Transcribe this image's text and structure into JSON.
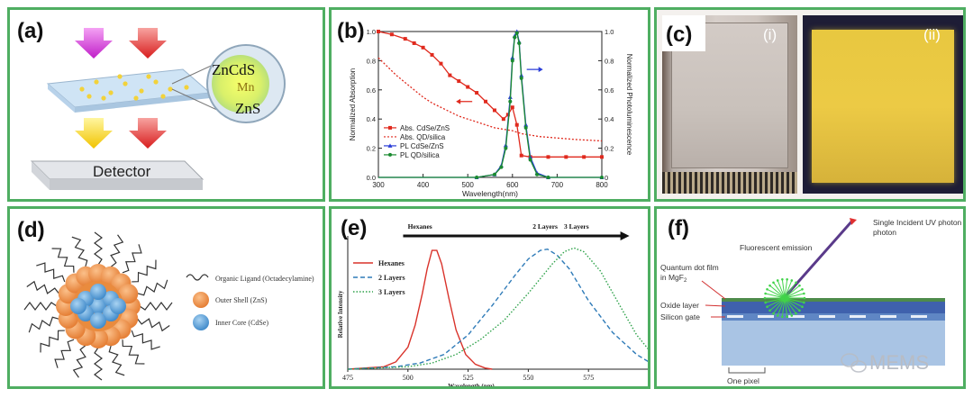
{
  "panels": {
    "a": {
      "label": "(a)",
      "dot_label": "ZnCdS",
      "mn_label": "Mn",
      "shell_label": "ZnS",
      "detector_label": "Detector"
    },
    "b": {
      "label": "(b)"
    },
    "c": {
      "label": "(c)",
      "sub_i": "(i)",
      "sub_ii": "(ii)"
    },
    "d": {
      "label": "(d)",
      "legend": [
        "Organic Ligand (Octadecylamine)",
        "Outer Shell (ZnS)",
        "Inner Core (CdSe)"
      ]
    },
    "e": {
      "label": "(e)",
      "arrow_labels": [
        "Hexanes",
        "2 Layers",
        "3 Layers"
      ]
    },
    "f": {
      "label": "(f)",
      "annotations": [
        "Single Incident UV photon",
        "Fluorescent emission",
        "Quantum dot film in MgF2",
        "Oxide layer",
        "Silicon gate",
        "One pixel"
      ]
    }
  },
  "watermark": "MEMS",
  "chart_data": [
    {
      "panel": "b",
      "type": "line",
      "xlabel": "Wavelength(nm)",
      "ylabel": "Normalized Absorption",
      "y2label": "Normalized Photoluminescence",
      "xlim": [
        300,
        800
      ],
      "ylim": [
        0,
        1.0
      ],
      "y2lim": [
        0,
        1.0
      ],
      "xticks": [
        300,
        400,
        500,
        600,
        700,
        800
      ],
      "yticks": [
        0.0,
        0.2,
        0.4,
        0.6,
        0.8,
        1.0
      ],
      "y2ticks": [
        0,
        0.2,
        0.4,
        0.6,
        0.8,
        1.0
      ],
      "legend_position": "lower-left",
      "series": [
        {
          "name": "Abs. CdSe/ZnS",
          "color": "#e02a1e",
          "style": "solid-square",
          "x": [
            300,
            330,
            360,
            380,
            400,
            420,
            440,
            460,
            480,
            500,
            520,
            540,
            560,
            580,
            590,
            600,
            610,
            620,
            640,
            680,
            720,
            760,
            800
          ],
          "y": [
            1.0,
            0.98,
            0.95,
            0.92,
            0.89,
            0.84,
            0.78,
            0.7,
            0.66,
            0.62,
            0.58,
            0.52,
            0.46,
            0.4,
            0.43,
            0.48,
            0.36,
            0.15,
            0.14,
            0.14,
            0.14,
            0.14,
            0.14
          ]
        },
        {
          "name": "Abs. QD/silica",
          "color": "#e02a1e",
          "style": "dotted",
          "x": [
            300,
            320,
            340,
            360,
            380,
            400,
            420,
            440,
            460,
            480,
            500,
            520,
            540,
            560,
            580,
            600,
            620,
            640,
            660,
            700,
            740,
            800
          ],
          "y": [
            0.82,
            0.76,
            0.7,
            0.65,
            0.6,
            0.55,
            0.51,
            0.48,
            0.45,
            0.42,
            0.4,
            0.38,
            0.36,
            0.34,
            0.33,
            0.32,
            0.3,
            0.29,
            0.28,
            0.27,
            0.26,
            0.25
          ]
        },
        {
          "name": "PL CdSe/ZnS",
          "color": "#2b3ed8",
          "style": "triangle",
          "x": [
            300,
            400,
            520,
            560,
            575,
            585,
            595,
            600,
            605,
            610,
            615,
            620,
            630,
            640,
            655,
            680,
            800
          ],
          "y": [
            0,
            0,
            0,
            0.02,
            0.08,
            0.22,
            0.55,
            0.82,
            0.97,
            1.0,
            0.93,
            0.7,
            0.36,
            0.14,
            0.03,
            0,
            0
          ]
        },
        {
          "name": "PL QD/silica",
          "color": "#1a8a30",
          "style": "circle",
          "x": [
            300,
            400,
            520,
            560,
            575,
            585,
            595,
            600,
            605,
            610,
            615,
            620,
            630,
            640,
            655,
            680,
            800
          ],
          "y": [
            0,
            0,
            0,
            0.02,
            0.07,
            0.2,
            0.52,
            0.8,
            0.96,
            0.99,
            0.92,
            0.68,
            0.34,
            0.12,
            0.02,
            0,
            0
          ]
        }
      ]
    },
    {
      "panel": "e",
      "type": "line",
      "xlabel": "Wavelength (nm)",
      "ylabel": "Relative Intensity",
      "xlim": [
        475,
        600
      ],
      "xticks": [
        475,
        500,
        525,
        550,
        575
      ],
      "legend_position": "top-left",
      "series": [
        {
          "name": "Hexanes",
          "color": "#d9322a",
          "style": "solid",
          "x": [
            475,
            490,
            495,
            500,
            503,
            506,
            508,
            510,
            512,
            514,
            517,
            520,
            524,
            528,
            532,
            535
          ],
          "y": [
            0,
            0.02,
            0.06,
            0.18,
            0.36,
            0.62,
            0.82,
            0.97,
            0.97,
            0.86,
            0.58,
            0.32,
            0.12,
            0.04,
            0.01,
            0
          ]
        },
        {
          "name": "2 Layers",
          "color": "#2f7bb8",
          "style": "dashed",
          "x": [
            475,
            495,
            505,
            515,
            525,
            535,
            545,
            550,
            555,
            558,
            562,
            567,
            575,
            585,
            595,
            600
          ],
          "y": [
            0,
            0.02,
            0.05,
            0.12,
            0.28,
            0.52,
            0.78,
            0.9,
            0.97,
            0.98,
            0.93,
            0.82,
            0.56,
            0.3,
            0.12,
            0.06
          ]
        },
        {
          "name": "3 Layers",
          "color": "#2ea24a",
          "style": "dotted",
          "x": [
            475,
            500,
            510,
            520,
            530,
            540,
            550,
            560,
            565,
            569,
            573,
            580,
            588,
            595,
            600
          ],
          "y": [
            0,
            0.02,
            0.05,
            0.12,
            0.24,
            0.4,
            0.62,
            0.86,
            0.96,
            0.99,
            0.96,
            0.8,
            0.52,
            0.28,
            0.16
          ]
        }
      ]
    }
  ]
}
